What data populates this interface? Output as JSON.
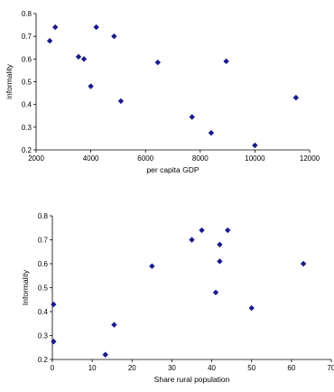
{
  "chart_data": [
    {
      "type": "scatter",
      "title": "",
      "xlabel": "per capita GDP",
      "ylabel": "informality",
      "xlim": [
        2000,
        12000
      ],
      "ylim": [
        0.2,
        0.8
      ],
      "xticks": [
        2000,
        4000,
        6000,
        8000,
        10000,
        12000
      ],
      "yticks": [
        0.2,
        0.3,
        0.4,
        0.5,
        0.6,
        0.7,
        0.8
      ],
      "grid": false,
      "marker": "diamond",
      "color": "#1a1a8c",
      "points": [
        {
          "x": 2500,
          "y": 0.68
        },
        {
          "x": 2700,
          "y": 0.74
        },
        {
          "x": 3550,
          "y": 0.61
        },
        {
          "x": 3750,
          "y": 0.6
        },
        {
          "x": 4000,
          "y": 0.48
        },
        {
          "x": 4200,
          "y": 0.74
        },
        {
          "x": 4850,
          "y": 0.7
        },
        {
          "x": 5100,
          "y": 0.415
        },
        {
          "x": 6450,
          "y": 0.585
        },
        {
          "x": 7700,
          "y": 0.345
        },
        {
          "x": 8400,
          "y": 0.275
        },
        {
          "x": 8950,
          "y": 0.59
        },
        {
          "x": 10000,
          "y": 0.22
        },
        {
          "x": 11500,
          "y": 0.43
        }
      ]
    },
    {
      "type": "scatter",
      "title": "",
      "xlabel": "Share rural population",
      "ylabel": "Informality",
      "xlim": [
        0,
        70
      ],
      "ylim": [
        0.2,
        0.8
      ],
      "xticks": [
        0,
        10,
        20,
        30,
        40,
        50,
        60,
        70
      ],
      "yticks": [
        0.2,
        0.3,
        0.4,
        0.5,
        0.6,
        0.7,
        0.8
      ],
      "grid": false,
      "marker": "diamond",
      "color": "#1a1a8c",
      "points": [
        {
          "x": 0.3,
          "y": 0.43
        },
        {
          "x": 0.3,
          "y": 0.275
        },
        {
          "x": 13.3,
          "y": 0.22
        },
        {
          "x": 15.5,
          "y": 0.345
        },
        {
          "x": 25,
          "y": 0.59
        },
        {
          "x": 35,
          "y": 0.7
        },
        {
          "x": 37.5,
          "y": 0.74
        },
        {
          "x": 41,
          "y": 0.48
        },
        {
          "x": 42,
          "y": 0.68
        },
        {
          "x": 42,
          "y": 0.61
        },
        {
          "x": 44,
          "y": 0.74
        },
        {
          "x": 50,
          "y": 0.415
        },
        {
          "x": 63,
          "y": 0.6
        }
      ]
    }
  ]
}
